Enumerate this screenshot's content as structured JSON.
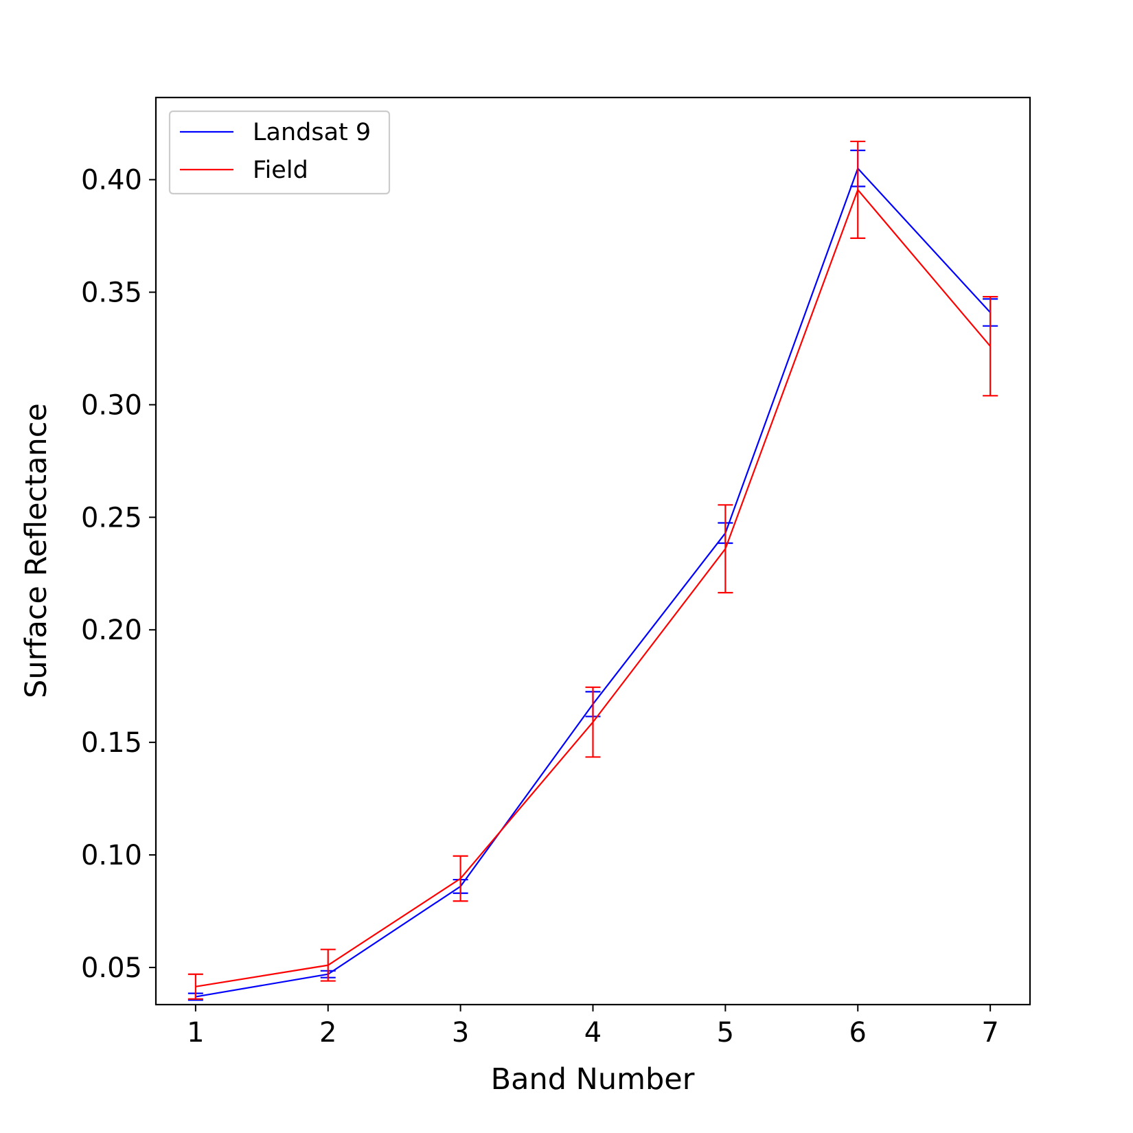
{
  "chart_data": {
    "type": "line",
    "x": [
      1,
      2,
      3,
      4,
      5,
      6,
      7
    ],
    "xlabel": "Band Number",
    "ylabel": "Surface Reflectance",
    "xticks": [
      "1",
      "2",
      "3",
      "4",
      "5",
      "6",
      "7"
    ],
    "yticks": [
      "0.05",
      "0.10",
      "0.15",
      "0.20",
      "0.25",
      "0.30",
      "0.35",
      "0.40"
    ],
    "xlim": [
      0.7,
      7.3
    ],
    "ylim": [
      0.0335,
      0.4365
    ],
    "grid": false,
    "legend_position": "top-left",
    "series": [
      {
        "name": "Landsat 9",
        "color": "#0000ff",
        "values": [
          0.037,
          0.047,
          0.086,
          0.167,
          0.243,
          0.405,
          0.341
        ],
        "errors": [
          0.0015,
          0.0015,
          0.003,
          0.0055,
          0.0045,
          0.008,
          0.006
        ]
      },
      {
        "name": "Field",
        "color": "#ff0000",
        "values": [
          0.0415,
          0.051,
          0.0895,
          0.159,
          0.236,
          0.3955,
          0.326
        ],
        "errors": [
          0.0055,
          0.007,
          0.01,
          0.0155,
          0.0195,
          0.0215,
          0.022
        ]
      }
    ]
  }
}
